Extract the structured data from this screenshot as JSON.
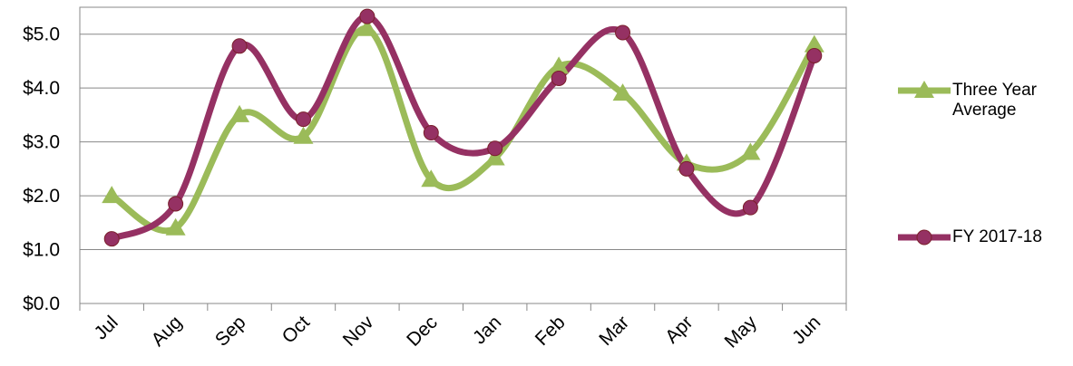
{
  "chart_data": {
    "type": "line",
    "categories": [
      "Jul",
      "Aug",
      "Sep",
      "Oct",
      "Nov",
      "Dec",
      "Jan",
      "Feb",
      "Mar",
      "Apr",
      "May",
      "Jun"
    ],
    "series": [
      {
        "name": "Three Year Average",
        "color": "#9bbb59",
        "marker": "triangle",
        "values": [
          2.0,
          1.4,
          3.5,
          3.1,
          5.1,
          2.3,
          2.7,
          4.4,
          3.9,
          2.6,
          2.8,
          4.8
        ]
      },
      {
        "name": "FY 2017-18",
        "color": "#953163",
        "marker": "circle",
        "values": [
          1.2,
          1.85,
          4.78,
          3.42,
          5.33,
          3.17,
          2.88,
          4.18,
          5.03,
          2.5,
          1.78,
          4.6
        ]
      }
    ],
    "ylim": [
      0,
      5.5
    ],
    "yticks": [
      {
        "value": 0,
        "label": "$0.0"
      },
      {
        "value": 1,
        "label": "$1.0"
      },
      {
        "value": 2,
        "label": "$2.0"
      },
      {
        "value": 3,
        "label": "$3.0"
      },
      {
        "value": 4,
        "label": "$4.0"
      },
      {
        "value": 5,
        "label": "$5.0"
      }
    ],
    "grid": true
  }
}
